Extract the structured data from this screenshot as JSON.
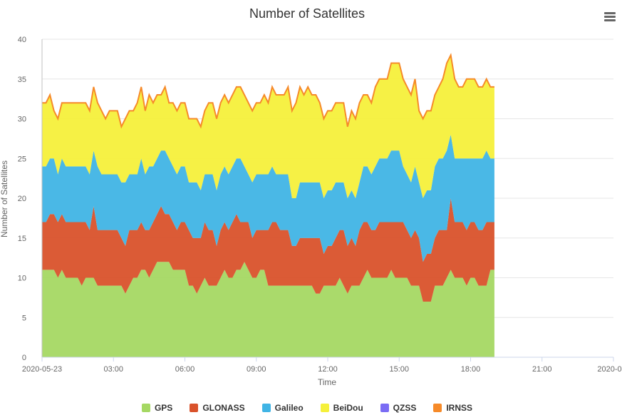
{
  "chart_data": {
    "type": "area",
    "stacked": true,
    "title": "Number of Satellites",
    "xlabel": "Time",
    "ylabel": "Number of Satellites",
    "ylim": [
      0,
      40
    ],
    "yticks": [
      "0",
      "5",
      "10",
      "15",
      "20",
      "25",
      "30",
      "35",
      "40"
    ],
    "xticks": [
      {
        "t": 0,
        "label": "2020-05-23"
      },
      {
        "t": 3,
        "label": "03:00"
      },
      {
        "t": 6,
        "label": "06:00"
      },
      {
        "t": 9,
        "label": "09:00"
      },
      {
        "t": 12,
        "label": "12:00"
      },
      {
        "t": 15,
        "label": "15:00"
      },
      {
        "t": 18,
        "label": "18:00"
      },
      {
        "t": 21,
        "label": "21:00"
      },
      {
        "t": 24,
        "label": "2020-0…"
      }
    ],
    "grid": true,
    "legend_position": "bottom-center",
    "x_start": "2020-05-23 00:00",
    "x_step_minutes": 10,
    "series": [
      {
        "name": "GPS",
        "color": "#a5d863",
        "values": [
          11,
          11,
          11,
          11,
          10,
          11,
          10,
          10,
          10,
          10,
          9,
          10,
          10,
          10,
          9,
          9,
          9,
          9,
          9,
          9,
          9,
          8,
          9,
          10,
          10,
          11,
          11,
          10,
          11,
          12,
          12,
          12,
          12,
          11,
          11,
          11,
          11,
          9,
          9,
          8,
          9,
          10,
          9,
          9,
          9,
          10,
          11,
          10,
          10,
          11,
          11,
          12,
          11,
          10,
          10,
          11,
          11,
          9,
          9,
          9,
          9,
          9,
          9,
          9,
          9,
          9,
          9,
          9,
          9,
          8,
          8,
          9,
          9,
          9,
          9,
          10,
          9,
          8,
          9,
          9,
          9,
          10,
          11,
          10,
          10,
          10,
          10,
          10,
          11,
          10,
          10,
          10,
          10,
          9,
          9,
          9,
          7,
          7,
          7,
          9,
          9,
          9,
          10,
          11,
          10,
          10,
          10,
          9,
          10,
          10,
          9,
          9,
          9,
          11,
          11
        ]
      },
      {
        "name": "GLONASS",
        "color": "#d9522b",
        "values": [
          6,
          6,
          7,
          7,
          7,
          7,
          7,
          7,
          7,
          7,
          8,
          7,
          6,
          9,
          7,
          7,
          7,
          7,
          7,
          7,
          6,
          6,
          7,
          6,
          6,
          6,
          5,
          6,
          6,
          6,
          7,
          6,
          6,
          6,
          5,
          6,
          6,
          7,
          6,
          7,
          6,
          7,
          7,
          7,
          5,
          6,
          6,
          6,
          7,
          7,
          6,
          5,
          6,
          5,
          6,
          5,
          5,
          7,
          8,
          8,
          7,
          7,
          7,
          5,
          5,
          6,
          6,
          6,
          6,
          7,
          7,
          4,
          5,
          5,
          6,
          6,
          7,
          6,
          6,
          5,
          7,
          7,
          6,
          6,
          6,
          7,
          7,
          7,
          6,
          7,
          7,
          7,
          6,
          6,
          7,
          6,
          5,
          6,
          6,
          6,
          7,
          7,
          6,
          9,
          7,
          7,
          7,
          7,
          7,
          7,
          7,
          7,
          8,
          6,
          6
        ]
      },
      {
        "name": "Galileo",
        "color": "#40b4e5",
        "values": [
          7,
          7,
          7,
          7,
          6,
          7,
          7,
          7,
          7,
          7,
          7,
          7,
          7,
          7,
          8,
          7,
          7,
          7,
          7,
          7,
          7,
          8,
          7,
          7,
          7,
          8,
          7,
          8,
          7,
          7,
          7,
          8,
          7,
          7,
          7,
          7,
          7,
          6,
          7,
          7,
          6,
          6,
          7,
          7,
          7,
          7,
          7,
          7,
          7,
          7,
          8,
          7,
          6,
          7,
          7,
          7,
          7,
          7,
          7,
          6,
          7,
          7,
          7,
          6,
          6,
          7,
          7,
          7,
          7,
          7,
          7,
          7,
          7,
          7,
          7,
          6,
          6,
          6,
          6,
          6,
          6,
          7,
          7,
          7,
          8,
          8,
          8,
          8,
          9,
          9,
          9,
          7,
          7,
          7,
          8,
          7,
          8,
          8,
          8,
          9,
          9,
          9,
          10,
          8,
          8,
          8,
          8,
          9,
          8,
          8,
          9,
          9,
          9,
          8,
          8
        ]
      },
      {
        "name": "BeiDou",
        "color": "#f5f03b",
        "values": [
          8,
          8,
          8,
          6,
          7,
          7,
          8,
          8,
          8,
          8,
          8,
          8,
          8,
          8,
          8,
          8,
          7,
          8,
          8,
          8,
          7,
          8,
          8,
          8,
          9,
          9,
          8,
          9,
          8,
          8,
          7,
          8,
          7,
          8,
          8,
          8,
          8,
          8,
          8,
          8,
          8,
          8,
          9,
          9,
          9,
          9,
          9,
          9,
          9,
          9,
          9,
          9,
          9,
          9,
          9,
          9,
          10,
          9,
          10,
          10,
          10,
          10,
          11,
          11,
          12,
          12,
          11,
          12,
          11,
          11,
          10,
          10,
          10,
          10,
          10,
          10,
          10,
          9,
          10,
          10,
          10,
          9,
          9,
          9,
          10,
          10,
          10,
          10,
          11,
          11,
          11,
          11,
          11,
          11,
          11,
          9,
          10,
          10,
          10,
          9,
          9,
          10,
          11,
          10,
          10,
          9,
          9,
          10,
          10,
          10,
          9,
          9,
          9,
          9,
          9
        ]
      },
      {
        "name": "QZSS",
        "color": "#7a6cf4",
        "values": []
      },
      {
        "name": "IRNSS",
        "color": "#f68a29",
        "values": []
      }
    ]
  }
}
